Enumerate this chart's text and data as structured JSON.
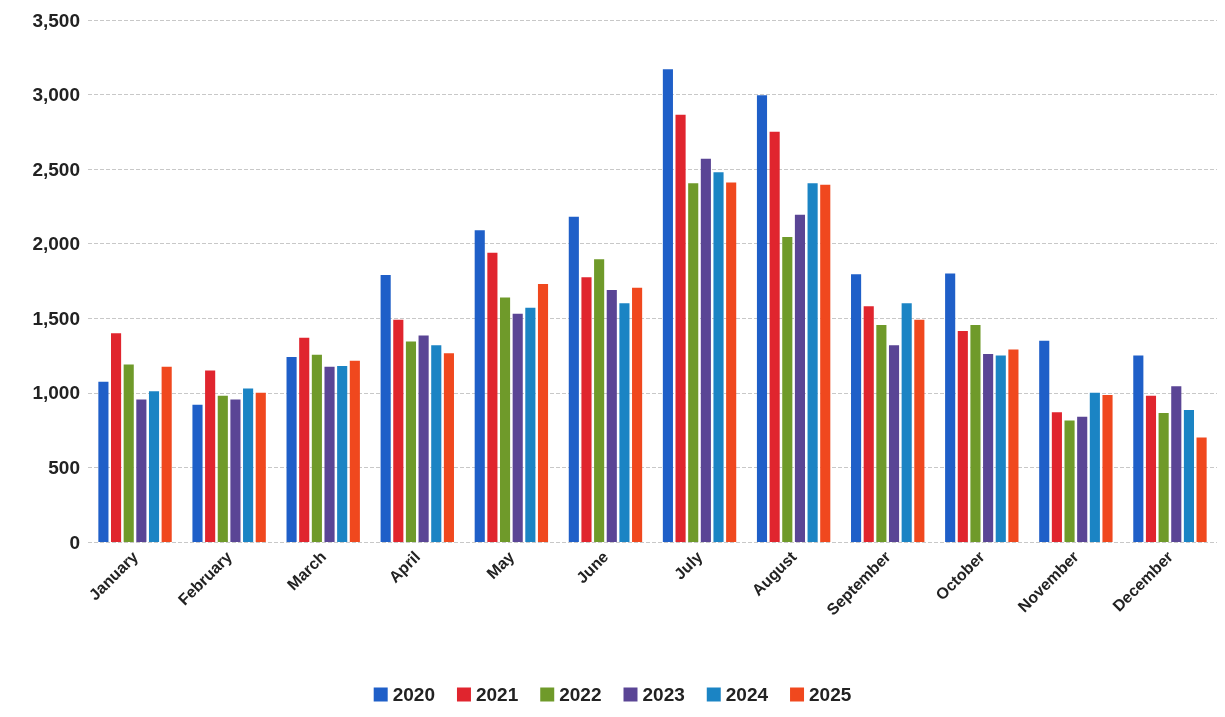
{
  "chart_data": {
    "type": "bar",
    "categories": [
      "January",
      "February",
      "March",
      "April",
      "May",
      "June",
      "July",
      "August",
      "September",
      "October",
      "November",
      "December"
    ],
    "series": [
      {
        "name": "2020",
        "color": "#1f5fc8",
        "values": [
          1075,
          920,
          1240,
          1790,
          2090,
          2180,
          3170,
          2995,
          1795,
          1800,
          1350,
          1250
        ]
      },
      {
        "name": "2021",
        "color": "#e0252e",
        "values": [
          1400,
          1150,
          1370,
          1490,
          1940,
          1775,
          2865,
          2750,
          1580,
          1415,
          870,
          980
        ]
      },
      {
        "name": "2022",
        "color": "#6f9a2a",
        "values": [
          1190,
          980,
          1255,
          1345,
          1640,
          1895,
          2405,
          2045,
          1455,
          1455,
          815,
          865
        ]
      },
      {
        "name": "2023",
        "color": "#5a4595",
        "values": [
          955,
          955,
          1175,
          1385,
          1530,
          1690,
          2570,
          2195,
          1320,
          1260,
          840,
          1045
        ]
      },
      {
        "name": "2024",
        "color": "#1b84c4",
        "values": [
          1010,
          1030,
          1180,
          1320,
          1570,
          1600,
          2480,
          2405,
          1600,
          1250,
          1000,
          885
        ]
      },
      {
        "name": "2025",
        "color": "#f0481e",
        "values": [
          1175,
          1000,
          1215,
          1265,
          1730,
          1705,
          2410,
          2395,
          1490,
          1290,
          985,
          700
        ]
      }
    ],
    "ylim": [
      0,
      3500
    ],
    "yticks": [
      0,
      500,
      {
        "value": 1000,
        "label": "1,000"
      },
      {
        "value": 1500,
        "label": "1,500"
      },
      {
        "value": 2000,
        "label": "2,000"
      },
      {
        "value": 2500,
        "label": "2,500"
      },
      {
        "value": 3000,
        "label": "3,000"
      },
      {
        "value": 3500,
        "label": "3,500"
      }
    ],
    "grid": "y",
    "legend": "bottom"
  }
}
